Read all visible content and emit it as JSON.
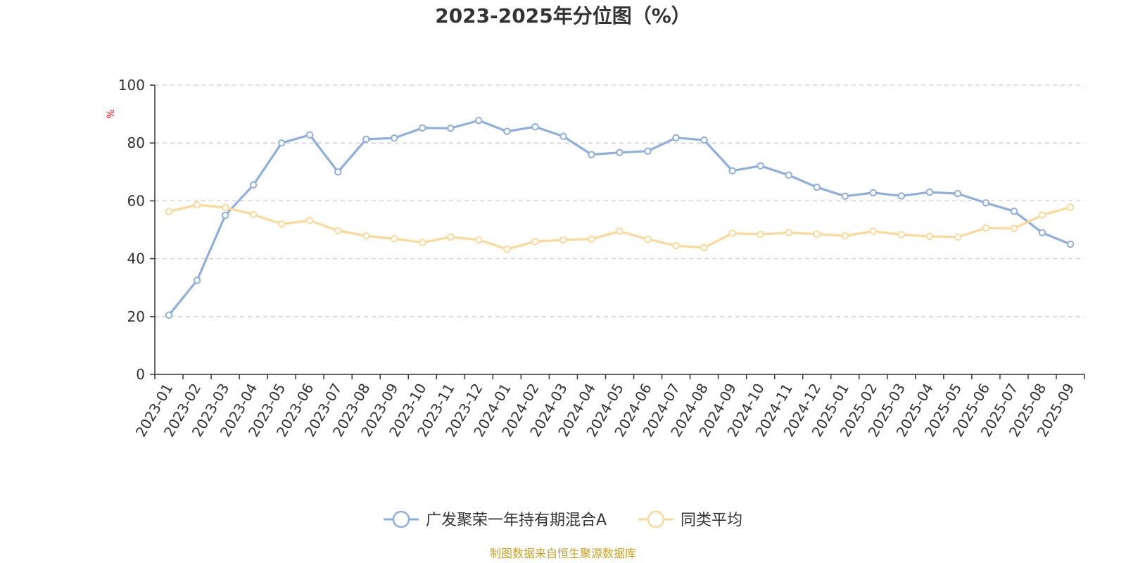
{
  "chart_data": {
    "type": "line",
    "title": "2023-2025年分位图（%）",
    "ylabel": "%",
    "xlabel": "",
    "ylim": [
      0,
      100
    ],
    "yticks": [
      0,
      20,
      40,
      60,
      80,
      100
    ],
    "grid": true,
    "legend_position": "bottom",
    "categories": [
      "2023-01",
      "2023-02",
      "2023-03",
      "2023-04",
      "2023-05",
      "2023-06",
      "2023-07",
      "2023-08",
      "2023-09",
      "2023-10",
      "2023-11",
      "2023-12",
      "2024-01",
      "2024-02",
      "2024-03",
      "2024-04",
      "2024-05",
      "2024-06",
      "2024-07",
      "2024-08",
      "2024-09",
      "2024-10",
      "2024-11",
      "2024-12",
      "2025-01",
      "2025-02",
      "2025-03",
      "2025-04",
      "2025-05",
      "2025-06",
      "2025-07",
      "2025-08",
      "2025-09"
    ],
    "series": [
      {
        "name": "广发聚荣一年持有期混合A",
        "color": "#8eaedb",
        "values": [
          20.5,
          32.5,
          55,
          65.5,
          80,
          82.8,
          70,
          81.3,
          81.7,
          85.2,
          85.1,
          87.8,
          84,
          85.6,
          82.3,
          76,
          76.7,
          77.2,
          81.8,
          81,
          70.4,
          72.1,
          68.9,
          64.7,
          61.6,
          62.8,
          61.7,
          63,
          62.5,
          59.3,
          56.4,
          49,
          45
        ]
      },
      {
        "name": "同类平均",
        "color": "#fbd99a",
        "values": [
          56.3,
          58.6,
          57.7,
          55.3,
          52,
          53.2,
          49.7,
          47.9,
          46.9,
          45.6,
          47.5,
          46.5,
          43.3,
          45.9,
          46.5,
          46.8,
          49.5,
          46.7,
          44.5,
          43.8,
          48.8,
          48.4,
          49,
          48.5,
          47.9,
          49.5,
          48.3,
          47.7,
          47.5,
          50.6,
          50.5,
          55.1,
          57.8
        ]
      }
    ],
    "axis_color": "#333333",
    "grid_color": "#cccccc",
    "unit_color": "#ff0000"
  },
  "footer": {
    "source": "制图数据来自恒生聚源数据库",
    "source_color": "#c9a227"
  }
}
